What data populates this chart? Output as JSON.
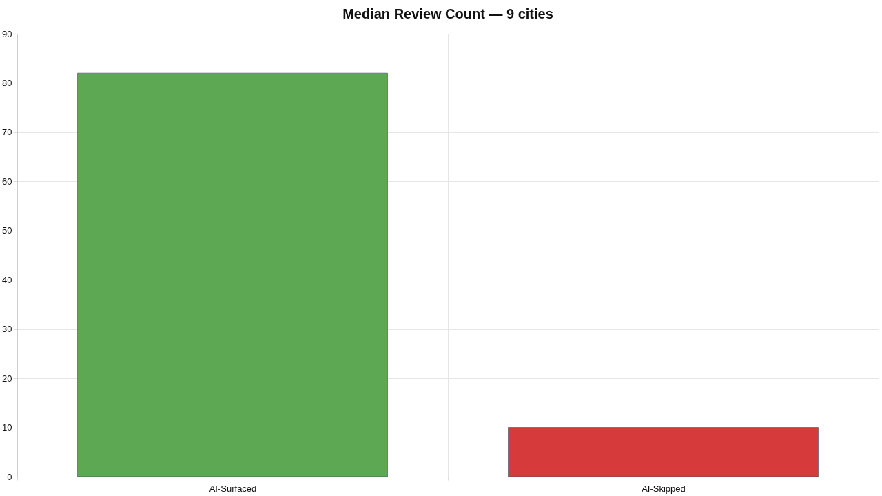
{
  "chart_data": {
    "type": "bar",
    "title": "Median Review Count — 9 cities",
    "categories": [
      "AI-Surfaced",
      "AI-Skipped"
    ],
    "values": [
      82,
      10
    ],
    "colors": [
      "#5da853",
      "#d63a3b"
    ],
    "ylim": [
      0,
      90
    ],
    "yticks": [
      0,
      10,
      20,
      30,
      40,
      50,
      60,
      70,
      80,
      90
    ],
    "grid": true
  }
}
